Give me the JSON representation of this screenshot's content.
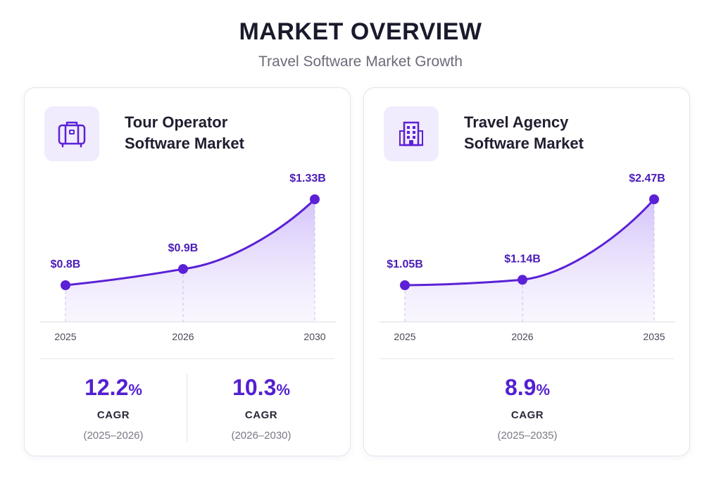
{
  "header": {
    "title": "MARKET OVERVIEW",
    "subtitle": "Travel Software Market Growth"
  },
  "colors": {
    "accent": "#5b21d6",
    "fill": "#ece4fd",
    "icon_bg": "#f0ebfd"
  },
  "cards": [
    {
      "icon": "suitcase-icon",
      "title_line1": "Tour Operator",
      "title_line2": "Software Market",
      "stats": [
        {
          "value": "12.2",
          "unit": "%",
          "label": "CAGR",
          "period": "(2025–2026)"
        },
        {
          "value": "10.3",
          "unit": "%",
          "label": "CAGR",
          "period": "(2026–2030)"
        }
      ]
    },
    {
      "icon": "building-icon",
      "title_line1": "Travel Agency",
      "title_line2": "Software Market",
      "stats": [
        {
          "value": "8.9",
          "unit": "%",
          "label": "CAGR",
          "period": "(2025–2035)"
        }
      ]
    }
  ],
  "chart_data": [
    {
      "type": "area",
      "title": "Tour Operator Software Market",
      "x": [
        "2025",
        "2026",
        "2030"
      ],
      "values": [
        0.8,
        0.9,
        1.33
      ],
      "data_labels": [
        "$0.8B",
        "$0.9B",
        "$1.33B"
      ],
      "unit": "USD billions",
      "grid": false
    },
    {
      "type": "area",
      "title": "Travel Agency Software Market",
      "x": [
        "2025",
        "2026",
        "2035"
      ],
      "values": [
        1.05,
        1.14,
        2.47
      ],
      "data_labels": [
        "$1.05B",
        "$1.14B",
        "$2.47B"
      ],
      "unit": "USD billions",
      "grid": false
    }
  ]
}
